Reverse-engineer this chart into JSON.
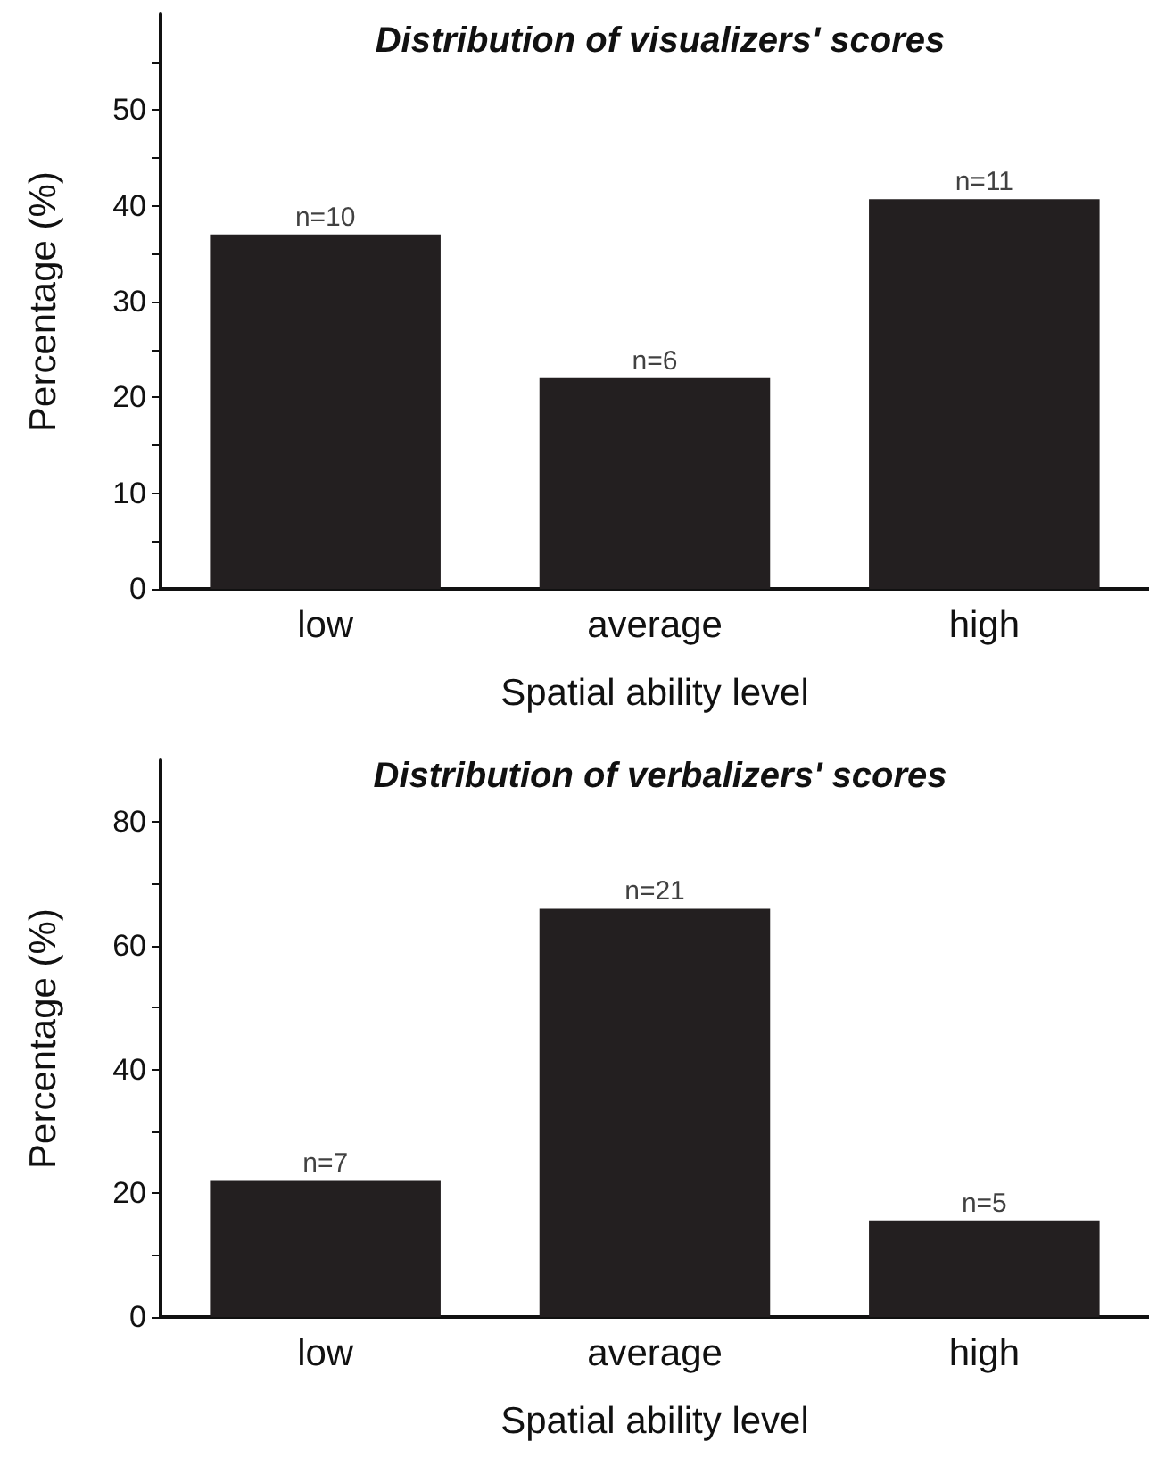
{
  "chart_data": [
    {
      "type": "bar",
      "title": "Distribution of visualizers' scores",
      "xlabel": "Spatial ability level",
      "ylabel": "Percentage (%)",
      "categories": [
        "low",
        "average",
        "high"
      ],
      "color": "#231f20",
      "values": [
        37,
        22,
        40.7
      ],
      "annotations": [
        {
          "text": "n=10",
          "x": "low",
          "y": 37
        },
        {
          "text": "n=6",
          "x": "average",
          "y": 22
        },
        {
          "text": "n=11",
          "x": "high",
          "y": 40.7
        }
      ],
      "ylim": [
        0,
        60
      ],
      "yticks": [
        0,
        {
          "value": 5,
          "label": null
        },
        10,
        {
          "value": 15,
          "label": null
        },
        20,
        {
          "value": 25,
          "label": null
        },
        30,
        {
          "value": 35,
          "label": null
        },
        40,
        {
          "value": 45,
          "label": null
        },
        50,
        {
          "value": 55,
          "label": null
        }
      ],
      "grid": false
    },
    {
      "type": "bar",
      "title": "Distribution of verbalizers' scores",
      "xlabel": "Spatial ability level",
      "ylabel": "Percentage (%)",
      "categories": [
        "low",
        "average",
        "high"
      ],
      "color": "#231f20",
      "values": [
        22,
        66,
        15.6
      ],
      "annotations": [
        {
          "text": "n=7",
          "x": "low",
          "y": 22
        },
        {
          "text": "n=21",
          "x": "average",
          "y": 66
        },
        {
          "text": "n=5",
          "x": "high",
          "y": 15.6
        }
      ],
      "ylim": [
        0,
        90
      ],
      "yticks": [
        0,
        {
          "value": 10,
          "label": null
        },
        20,
        {
          "value": 30,
          "label": null
        },
        40,
        {
          "value": 50,
          "label": null
        },
        60,
        {
          "value": 70,
          "label": null
        },
        80
      ],
      "grid": false
    }
  ]
}
